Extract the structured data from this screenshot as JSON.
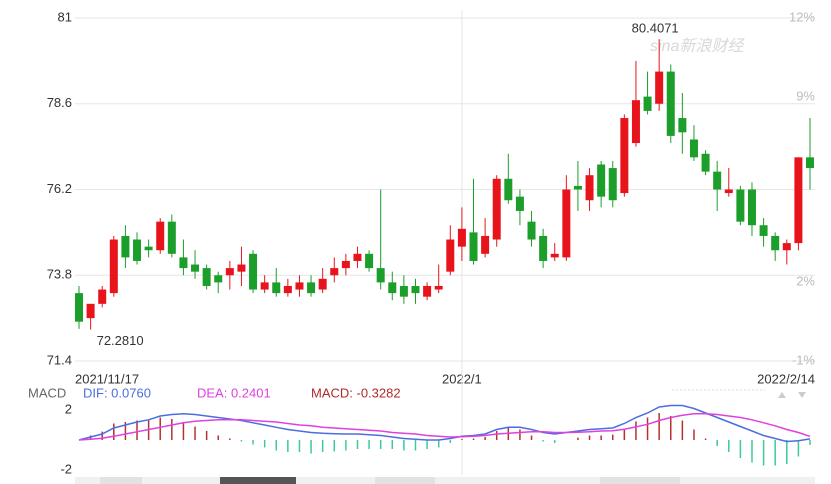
{
  "chart_data": [
    {
      "type": "candlestick",
      "x": [
        "2021/11/17",
        null,
        null,
        null,
        null,
        null,
        null,
        null,
        null,
        null,
        null,
        null,
        null,
        null,
        null,
        null,
        null,
        null,
        null,
        null,
        null,
        null,
        null,
        null,
        null,
        null,
        null,
        null,
        null,
        null,
        null,
        null,
        null,
        "2022/1",
        null,
        null,
        null,
        null,
        null,
        null,
        null,
        null,
        null,
        null,
        null,
        null,
        null,
        null,
        null,
        null,
        null,
        null,
        null,
        null,
        null,
        null,
        null,
        null,
        null,
        null,
        null,
        null,
        null,
        "2022/2/14"
      ],
      "open": [
        73.3,
        72.6,
        73.0,
        73.3,
        74.9,
        74.8,
        74.6,
        74.5,
        75.3,
        74.3,
        74.1,
        74.0,
        73.8,
        73.8,
        73.9,
        74.4,
        73.4,
        73.6,
        73.3,
        73.4,
        73.6,
        73.4,
        73.8,
        74.0,
        74.2,
        74.4,
        74.0,
        73.6,
        73.5,
        73.5,
        73.2,
        73.4,
        73.9,
        74.6,
        75.0,
        74.4,
        74.8,
        76.5,
        76.0,
        75.3,
        74.9,
        74.3,
        74.3,
        76.3,
        75.9,
        76.9,
        76.8,
        76.1,
        77.5,
        78.8,
        78.6,
        79.5,
        78.2,
        77.6,
        77.2,
        76.7,
        76.1,
        76.2,
        76.2,
        75.2,
        74.9,
        74.5,
        74.7,
        77.1
      ],
      "high": [
        73.5,
        73.0,
        73.5,
        74.9,
        75.2,
        75.0,
        74.8,
        75.4,
        75.5,
        74.8,
        74.5,
        74.1,
        73.9,
        74.2,
        74.6,
        74.5,
        73.8,
        74.0,
        73.7,
        73.8,
        73.8,
        74.0,
        74.3,
        74.4,
        74.6,
        74.5,
        76.2,
        73.9,
        73.8,
        73.7,
        73.6,
        74.1,
        75.2,
        75.7,
        76.5,
        75.4,
        76.6,
        77.2,
        76.2,
        75.6,
        75.1,
        74.7,
        76.6,
        77.0,
        76.8,
        77.0,
        77.0,
        78.3,
        79.8,
        79.5,
        80.4071,
        79.7,
        78.9,
        78.0,
        77.3,
        77.0,
        76.8,
        76.3,
        76.4,
        75.4,
        75.0,
        74.8,
        77.1,
        78.2
      ],
      "low": [
        72.3,
        72.281,
        72.9,
        73.2,
        74.0,
        74.1,
        74.3,
        74.4,
        74.3,
        73.8,
        73.7,
        73.4,
        73.3,
        73.4,
        73.5,
        73.3,
        73.3,
        73.2,
        73.2,
        73.2,
        73.2,
        73.3,
        73.6,
        73.8,
        74.0,
        73.9,
        73.4,
        73.1,
        73.0,
        73.0,
        73.1,
        73.3,
        73.8,
        74.2,
        74.1,
        74.3,
        74.6,
        75.8,
        75.2,
        74.6,
        74.0,
        74.2,
        74.2,
        75.6,
        75.6,
        75.7,
        75.7,
        76.0,
        77.4,
        78.3,
        78.4,
        77.5,
        77.2,
        77.0,
        76.6,
        75.6,
        76.0,
        75.2,
        74.9,
        74.6,
        74.2,
        74.1,
        74.5,
        76.2
      ],
      "close": [
        72.5,
        73.0,
        73.4,
        74.8,
        74.3,
        74.2,
        74.5,
        75.3,
        74.4,
        74.0,
        73.9,
        73.5,
        73.6,
        74.0,
        74.1,
        73.4,
        73.6,
        73.3,
        73.5,
        73.6,
        73.3,
        73.7,
        74.0,
        74.2,
        74.4,
        74.0,
        73.6,
        73.3,
        73.2,
        73.3,
        73.5,
        73.5,
        74.8,
        75.1,
        74.2,
        74.9,
        76.5,
        75.9,
        75.6,
        74.8,
        74.2,
        74.4,
        76.2,
        76.2,
        76.6,
        76.0,
        75.9,
        78.2,
        78.7,
        78.4,
        79.5,
        77.7,
        77.8,
        77.1,
        76.7,
        76.2,
        76.2,
        75.3,
        75.2,
        74.9,
        74.5,
        74.7,
        77.1,
        76.8
      ],
      "up_color": "#e8141c",
      "down_color": "#1c9e2a",
      "ylim": [
        71.4,
        81
      ],
      "yticks": [
        81,
        78.6,
        76.2,
        73.8,
        71.4
      ],
      "y2lim": [
        -1,
        12
      ],
      "y2ticks": [
        {
          "value": 12,
          "label": "12%"
        },
        {
          "value": 9,
          "label": "9%"
        },
        {
          "value": 2,
          "label": "2%"
        },
        {
          "value": -1,
          "label": "-1%"
        }
      ],
      "grid": true,
      "high_label": "80.4071",
      "low_label": "72.2810",
      "watermark": "sina新浪财经"
    },
    {
      "type": "macd",
      "title": "MACD",
      "series": [
        {
          "name": "DIF: 0.0760",
          "color": "#4a6ee0",
          "values": [
            0.0,
            0.2,
            0.4,
            0.8,
            1.0,
            1.2,
            1.35,
            1.6,
            1.7,
            1.75,
            1.7,
            1.6,
            1.5,
            1.4,
            1.3,
            1.15,
            1.0,
            0.85,
            0.7,
            0.6,
            0.5,
            0.45,
            0.42,
            0.4,
            0.4,
            0.35,
            0.3,
            0.2,
            0.1,
            0.05,
            0.0,
            0.0,
            0.1,
            0.25,
            0.3,
            0.4,
            0.7,
            0.85,
            0.85,
            0.7,
            0.5,
            0.4,
            0.5,
            0.6,
            0.7,
            0.75,
            0.8,
            1.1,
            1.5,
            1.8,
            2.2,
            2.3,
            2.3,
            2.1,
            1.8,
            1.5,
            1.2,
            0.9,
            0.6,
            0.3,
            0.1,
            -0.1,
            -0.05,
            0.076
          ]
        },
        {
          "name": "DEA: 0.2401",
          "color": "#e040e0",
          "values": [
            0.0,
            0.05,
            0.12,
            0.25,
            0.4,
            0.55,
            0.7,
            0.85,
            1.0,
            1.15,
            1.25,
            1.3,
            1.35,
            1.35,
            1.35,
            1.3,
            1.25,
            1.2,
            1.1,
            1.0,
            0.95,
            0.85,
            0.8,
            0.75,
            0.7,
            0.65,
            0.6,
            0.5,
            0.45,
            0.4,
            0.3,
            0.25,
            0.2,
            0.22,
            0.25,
            0.3,
            0.4,
            0.45,
            0.5,
            0.55,
            0.55,
            0.5,
            0.5,
            0.52,
            0.55,
            0.6,
            0.62,
            0.72,
            0.88,
            1.05,
            1.3,
            1.5,
            1.65,
            1.75,
            1.75,
            1.7,
            1.6,
            1.5,
            1.35,
            1.15,
            0.95,
            0.7,
            0.5,
            0.2401
          ]
        },
        {
          "name": "MACD: -0.3282",
          "color": "#b02a2a",
          "up_color": "#b83030",
          "down_color": "#3cc9a0",
          "values": [
            0,
            0.3,
            0.56,
            1.1,
            1.2,
            1.3,
            1.3,
            1.5,
            1.4,
            1.2,
            0.9,
            0.6,
            0.3,
            0.1,
            -0.1,
            -0.3,
            -0.5,
            -0.7,
            -0.8,
            -0.8,
            -0.9,
            -0.8,
            -0.76,
            -0.7,
            -0.6,
            -0.6,
            -0.6,
            -0.6,
            -0.7,
            -0.7,
            -0.6,
            -0.5,
            -0.2,
            0.06,
            0.1,
            0.2,
            0.6,
            0.8,
            0.7,
            0.3,
            -0.1,
            -0.2,
            0,
            0.16,
            0.3,
            0.3,
            0.36,
            0.76,
            1.24,
            1.5,
            1.8,
            1.6,
            1.3,
            0.7,
            0.1,
            -0.4,
            -0.8,
            -1.2,
            -1.5,
            -1.7,
            -1.7,
            -1.6,
            -1.1,
            -0.3282
          ]
        }
      ],
      "ylim": [
        -2.6,
        2.6
      ],
      "yticks": [
        2,
        -2
      ]
    }
  ]
}
